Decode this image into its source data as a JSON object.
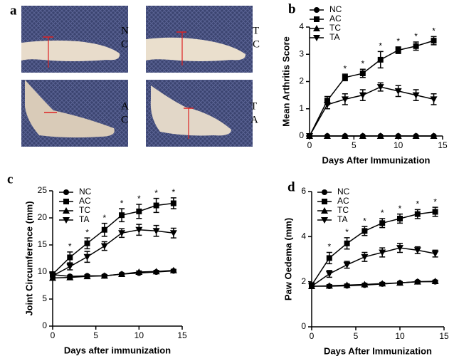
{
  "panel_a": {
    "label": "a",
    "photos": [
      {
        "caption": [
          "N",
          "C"
        ]
      },
      {
        "caption": [
          "T",
          "C"
        ]
      },
      {
        "caption": [
          "A",
          "C"
        ]
      },
      {
        "caption": [
          "T",
          "A"
        ]
      }
    ]
  },
  "chart_data": [
    {
      "type": "line",
      "label": "b",
      "ylabel": "Mean Arthritis Score",
      "xlabel": "Days After Immunization",
      "x": [
        0,
        2,
        4,
        6,
        8,
        10,
        12,
        14
      ],
      "xlim": [
        0,
        15
      ],
      "xticks": [
        0,
        5,
        10,
        15
      ],
      "ylim": [
        0,
        4
      ],
      "yticks": [
        0,
        1,
        2,
        3,
        4
      ],
      "series": [
        {
          "name": "NC",
          "color": "#000",
          "marker": "circle",
          "values": [
            0,
            0,
            0,
            0,
            0,
            0,
            0,
            0
          ],
          "errors": [
            0,
            0,
            0,
            0,
            0,
            0,
            0,
            0
          ]
        },
        {
          "name": "AC",
          "color": "#000",
          "marker": "square",
          "values": [
            0,
            1.3,
            2.15,
            2.3,
            2.8,
            3.15,
            3.3,
            3.5
          ],
          "errors": [
            0,
            0.15,
            0.12,
            0.15,
            0.3,
            0.12,
            0.15,
            0.15
          ]
        },
        {
          "name": "TC",
          "color": "#000",
          "marker": "triangle-up",
          "values": [
            0,
            0,
            0,
            0,
            0,
            0,
            0,
            0
          ],
          "errors": [
            0,
            0,
            0,
            0,
            0,
            0,
            0,
            0
          ]
        },
        {
          "name": "TA",
          "color": "#000",
          "marker": "triangle-down",
          "values": [
            0,
            1.15,
            1.35,
            1.5,
            1.8,
            1.65,
            1.5,
            1.35
          ],
          "errors": [
            0,
            0.15,
            0.2,
            0.2,
            0.15,
            0.2,
            0.2,
            0.2
          ]
        }
      ],
      "annotations": [
        {
          "text": "*",
          "x": 4
        },
        {
          "text": "*",
          "x": 6
        },
        {
          "text": "*",
          "x": 8
        },
        {
          "text": "*",
          "x": 10
        },
        {
          "text": "*",
          "x": 12
        },
        {
          "text": "*",
          "x": 14
        }
      ]
    },
    {
      "type": "line",
      "label": "c",
      "ylabel": "Joint Circumference (mm)",
      "xlabel": "Days after immunization",
      "x": [
        0,
        2,
        4,
        6,
        8,
        10,
        12,
        14
      ],
      "xlim": [
        0,
        15
      ],
      "xticks": [
        0,
        5,
        10,
        15
      ],
      "ylim": [
        0,
        25
      ],
      "yticks": [
        0,
        5,
        10,
        15,
        20,
        25
      ],
      "series": [
        {
          "name": "NC",
          "color": "#000",
          "marker": "circle",
          "values": [
            9.5,
            9.2,
            9.3,
            9.3,
            9.6,
            9.8,
            10.0,
            10.2
          ],
          "errors": [
            0.2,
            0.2,
            0.2,
            0.2,
            0.2,
            0.2,
            0.2,
            0.2
          ]
        },
        {
          "name": "AC",
          "color": "#000",
          "marker": "square",
          "values": [
            9.6,
            12.7,
            15.3,
            17.8,
            20.5,
            21.2,
            22.3,
            22.7
          ],
          "errors": [
            0.3,
            1,
            1,
            1.2,
            1.2,
            1.3,
            1.3,
            1
          ]
        },
        {
          "name": "TC",
          "color": "#000",
          "marker": "triangle-up",
          "values": [
            8.9,
            9.0,
            9.2,
            9.3,
            9.6,
            10.0,
            10.1,
            10.3
          ],
          "errors": [
            0.2,
            0.2,
            0.2,
            0.2,
            0.2,
            0.2,
            0.2,
            0.2
          ]
        },
        {
          "name": "TA",
          "color": "#000",
          "marker": "triangle-down",
          "values": [
            9.3,
            11.0,
            12.8,
            14.8,
            17.2,
            17.8,
            17.6,
            17.2
          ],
          "errors": [
            0.3,
            0.6,
            1,
            0.8,
            0.8,
            1,
            1,
            0.9
          ]
        }
      ],
      "annotations": [
        {
          "text": "*",
          "x": 2
        },
        {
          "text": "*",
          "x": 4
        },
        {
          "text": "*",
          "x": 6
        },
        {
          "text": "*",
          "x": 8
        },
        {
          "text": "*",
          "x": 10
        },
        {
          "text": "*",
          "x": 12
        },
        {
          "text": "*",
          "x": 14
        }
      ]
    },
    {
      "type": "line",
      "label": "d",
      "ylabel": "Paw Oedema (mm)",
      "xlabel": "Days After Immunization",
      "x": [
        0,
        2,
        4,
        6,
        8,
        10,
        12,
        14
      ],
      "xlim": [
        0,
        15
      ],
      "xticks": [
        0,
        5,
        10,
        15
      ],
      "ylim": [
        0,
        6
      ],
      "yticks": [
        0,
        2,
        4,
        6
      ],
      "series": [
        {
          "name": "NC",
          "color": "#000",
          "marker": "circle",
          "values": [
            1.8,
            1.8,
            1.82,
            1.85,
            1.9,
            1.95,
            2.0,
            2.0
          ],
          "errors": [
            0.05,
            0.05,
            0.05,
            0.05,
            0.05,
            0.05,
            0.05,
            0.05
          ]
        },
        {
          "name": "AC",
          "color": "#000",
          "marker": "square",
          "values": [
            1.85,
            3.05,
            3.7,
            4.25,
            4.6,
            4.8,
            5.0,
            5.1
          ],
          "errors": [
            0.05,
            0.25,
            0.25,
            0.2,
            0.2,
            0.2,
            0.2,
            0.2
          ]
        },
        {
          "name": "TC",
          "color": "#000",
          "marker": "triangle-up",
          "values": [
            1.8,
            1.82,
            1.85,
            1.88,
            1.92,
            1.95,
            2.0,
            2.02
          ],
          "errors": [
            0.05,
            0.05,
            0.05,
            0.05,
            0.05,
            0.05,
            0.05,
            0.05
          ]
        },
        {
          "name": "TA",
          "color": "#000",
          "marker": "triangle-down",
          "values": [
            1.8,
            2.35,
            2.75,
            3.1,
            3.3,
            3.5,
            3.4,
            3.25
          ],
          "errors": [
            0.05,
            0.15,
            0.15,
            0.2,
            0.2,
            0.2,
            0.15,
            0.15
          ]
        }
      ],
      "annotations": [
        {
          "text": "*",
          "x": 2
        },
        {
          "text": "*",
          "x": 4
        },
        {
          "text": "*",
          "x": 6
        },
        {
          "text": "*",
          "x": 8
        },
        {
          "text": "*",
          "x": 10
        },
        {
          "text": "*",
          "x": 12
        },
        {
          "text": "*",
          "x": 14
        }
      ]
    }
  ]
}
